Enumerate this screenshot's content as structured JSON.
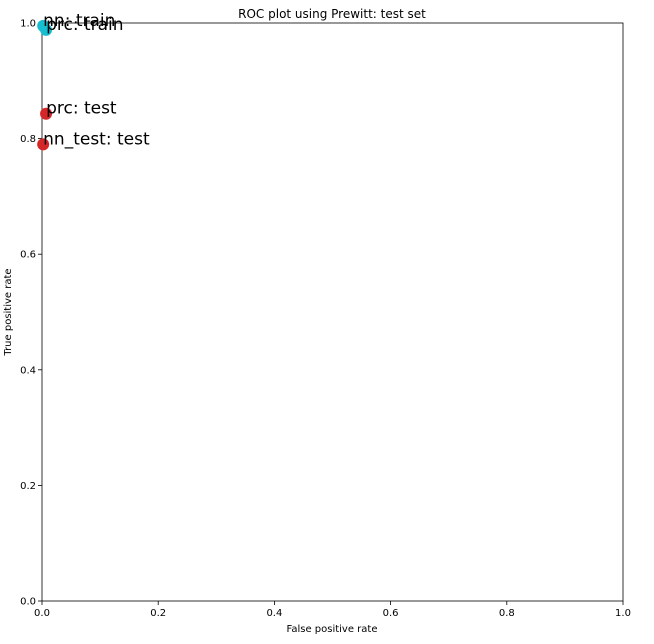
{
  "chart_data": {
    "type": "scatter",
    "title": "ROC plot using Prewitt: test set",
    "xlabel": "False positive rate",
    "ylabel": "True positive rate",
    "xlim": [
      0.0,
      1.0
    ],
    "ylim": [
      0.0,
      1.0
    ],
    "xticks": [
      "0.0",
      "0.2",
      "0.4",
      "0.6",
      "0.8",
      "1.0"
    ],
    "yticks": [
      "0.0",
      "0.2",
      "0.4",
      "0.6",
      "0.8",
      "1.0"
    ],
    "grid": false,
    "points": [
      {
        "label": "nn: train",
        "x": 0.002,
        "y": 0.995,
        "color": "#17becf"
      },
      {
        "label": "prc: train",
        "x": 0.007,
        "y": 0.988,
        "color": "#17becf"
      },
      {
        "label": "prc: test",
        "x": 0.007,
        "y": 0.843,
        "color": "#d62728"
      },
      {
        "label": "nn_test: test",
        "x": 0.002,
        "y": 0.79,
        "color": "#d62728"
      }
    ]
  }
}
